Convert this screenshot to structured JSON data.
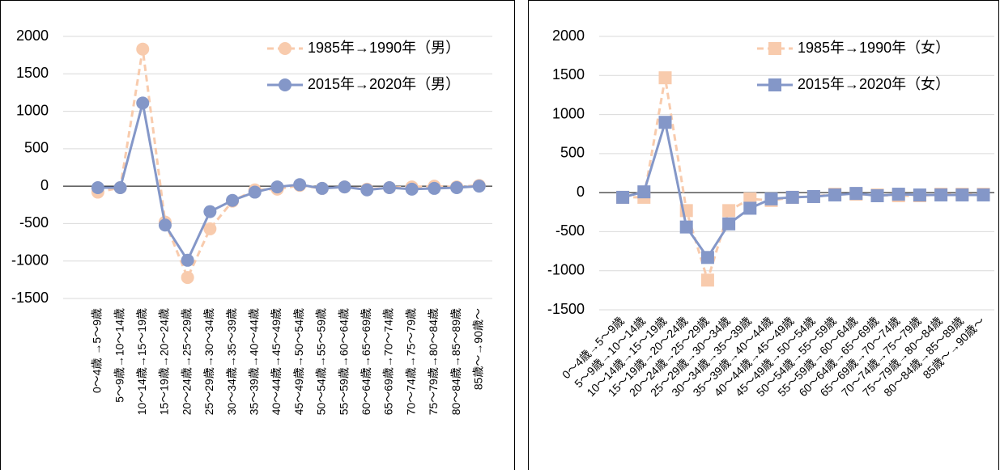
{
  "chart_data": [
    {
      "type": "line",
      "marker": "circle",
      "categories": [
        "0～4歳 →5～9歳",
        "5～9歳→10～14歳",
        "10～14歳→15～19歳",
        "15～19歳→20～24歳",
        "20～24歳→25～29歳",
        "25～29歳→30～34歳",
        "30～34歳→35～39歳",
        "35～39歳→40～44歳",
        "40～44歳→45～49歳",
        "45～49歳→50～54歳",
        "50～54歳→55～59歳",
        "55～59歳→60～64歳",
        "60～64歳→65～69歳",
        "65～69歳→70～74歳",
        "70～74歳→75～79歳",
        "75～79歳→80～84歳",
        "80～84歳→85～89歳",
        "85歳～→90歳～"
      ],
      "series": [
        {
          "name": "1985年→1990年（男）",
          "color": "#f8cbad",
          "dashed": true,
          "values": [
            -80,
            -20,
            1830,
            -480,
            -1220,
            -570,
            -200,
            -50,
            -40,
            10,
            -30,
            -10,
            -40,
            -20,
            -10,
            0,
            -10,
            10
          ]
        },
        {
          "name": "2015年→2020年（男）",
          "color": "#8497c8",
          "dashed": false,
          "values": [
            -20,
            -20,
            1110,
            -520,
            -990,
            -340,
            -190,
            -80,
            -10,
            20,
            -30,
            -10,
            -50,
            -20,
            -40,
            -30,
            -20,
            0
          ]
        }
      ],
      "ylim": [
        -1500,
        2000
      ],
      "yticks": [
        -1500,
        -1000,
        -500,
        0,
        500,
        1000,
        1500,
        2000
      ],
      "grid": true
    },
    {
      "type": "line",
      "marker": "square",
      "categories": [
        "0～4歳→5～9歳",
        "5～9歳→10～14歳",
        "10～14歳→15～19歳",
        "15～19歳→20～24歳",
        "20～24歳→25～29歳",
        "25～29歳→30～34歳",
        "30～34歳→35～39歳",
        "35～39歳→40～44歳",
        "40～44歳→45～49歳",
        "45～49歳→50～54歳",
        "50～54歳→55～59歳",
        "55～59歳→60～64歳",
        "60～64歳→65～69歳",
        "65～69歳→70～74歳",
        "70～74歳→75～79歳",
        "75～79歳→80～84歳",
        "80～84歳→85～89歳",
        "85歳～→90歳～"
      ],
      "series": [
        {
          "name": "1985年→1990年（女）",
          "color": "#f8cbad",
          "dashed": true,
          "values": [
            -60,
            -60,
            1470,
            -230,
            -1120,
            -230,
            -80,
            -100,
            -60,
            -50,
            -20,
            -20,
            -30,
            -40,
            -40,
            -20,
            -20,
            -20
          ]
        },
        {
          "name": "2015年→2020年（女）",
          "color": "#8497c8",
          "dashed": false,
          "values": [
            -60,
            10,
            900,
            -440,
            -830,
            -400,
            -200,
            -80,
            -60,
            -50,
            -30,
            -10,
            -40,
            -20,
            -30,
            -30,
            -30,
            -30
          ]
        }
      ],
      "ylim": [
        -1500,
        2000
      ],
      "yticks": [
        -1500,
        -1000,
        -500,
        0,
        500,
        1000,
        1500,
        2000
      ],
      "grid": true
    }
  ]
}
